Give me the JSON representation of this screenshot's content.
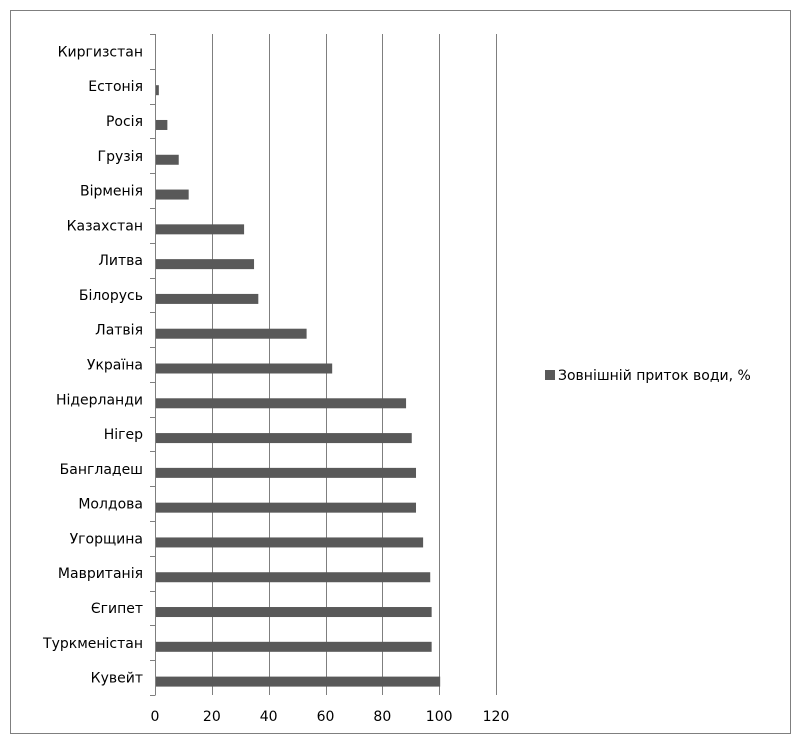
{
  "chart_data": {
    "type": "bar",
    "orientation": "horizontal",
    "categories": [
      "Киргизстан",
      "Естонія",
      "Росія",
      "Грузія",
      "Вірменія",
      "Казахстан",
      "Литва",
      "Білорусь",
      "Латвія",
      "Україна",
      "Нідерланди",
      "Нігер",
      "Бангладеш",
      "Молдова",
      "Угорщина",
      "Мавританія",
      "Єгипет",
      "Туркменістан",
      "Кувейт"
    ],
    "series": [
      {
        "name": "Зовнішній приток води, %",
        "color": "#595959",
        "values": [
          0,
          1,
          4,
          8,
          11.5,
          31,
          34.5,
          36,
          53,
          62,
          88,
          90,
          91.5,
          91.5,
          94,
          96.5,
          97,
          97,
          100
        ]
      }
    ],
    "xlim": [
      0,
      120
    ],
    "xticks": [
      0,
      20,
      40,
      60,
      80,
      100,
      120
    ],
    "grid": "vertical",
    "legend_position": "right",
    "title": "",
    "xlabel": "",
    "ylabel": ""
  }
}
